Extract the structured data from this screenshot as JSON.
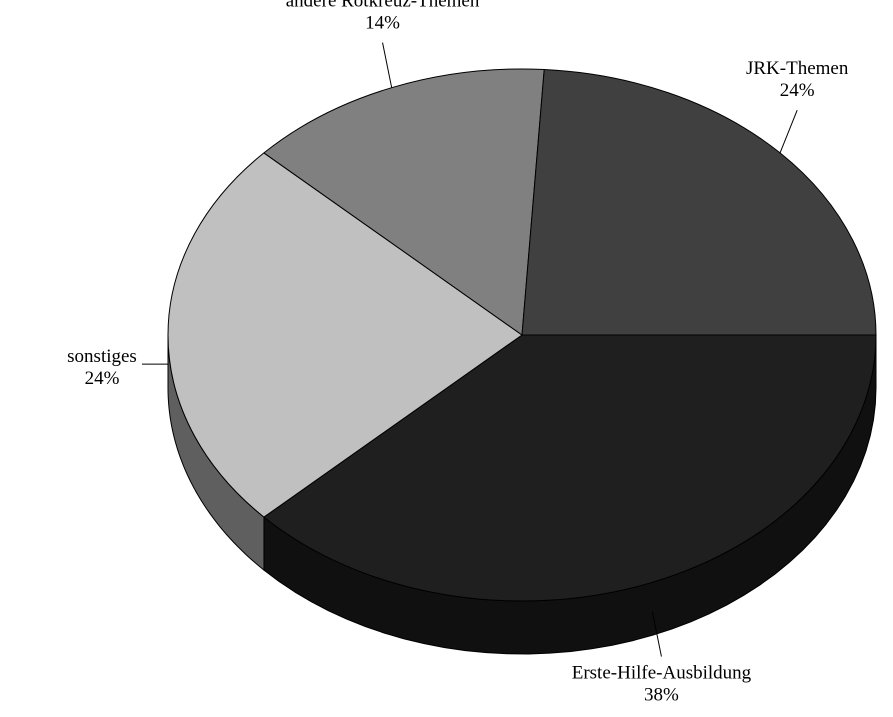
{
  "chart_data": {
    "type": "pie",
    "style": "3d",
    "slices": [
      {
        "label": "Erste-Hilfe-Ausbildung",
        "value": 38,
        "value_label": "38%",
        "color": "#1f1f1f",
        "side_color": "#101010"
      },
      {
        "label": "sonstiges",
        "value": 24,
        "value_label": "24%",
        "color": "#c0c0c0",
        "side_color": "#5f5f5f"
      },
      {
        "label": "andere Rotkreuz-Themen",
        "value": 14,
        "value_label": "14%",
        "color": "#808080",
        "side_color": "#3c3c3c"
      },
      {
        "label": "JRK-Themen",
        "value": 24,
        "value_label": "24%",
        "color": "#404040",
        "side_color": "#202020"
      }
    ]
  }
}
